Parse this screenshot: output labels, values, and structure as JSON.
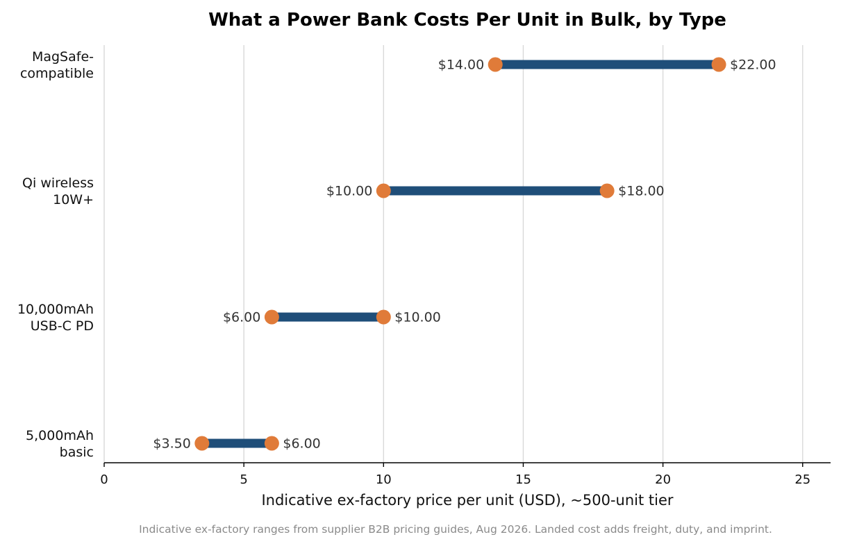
{
  "chart_data": {
    "type": "dumbbell",
    "title": "What a Power Bank Costs Per Unit in Bulk, by Type",
    "xlabel": "Indicative ex-factory price per unit (USD), ~500-unit tier",
    "xlim": [
      0,
      26
    ],
    "xticks": [
      0,
      5,
      10,
      15,
      20,
      25
    ],
    "grid": "vertical",
    "categories": [
      {
        "label": [
          "MagSafe-",
          "compatible"
        ],
        "low": 14.0,
        "high": 22.0,
        "low_label": "$14.00",
        "high_label": "$22.00"
      },
      {
        "label": [
          "Qi wireless",
          "10W+"
        ],
        "low": 10.0,
        "high": 18.0,
        "low_label": "$10.00",
        "high_label": "$18.00"
      },
      {
        "label": [
          "10,000mAh",
          "USB-C PD"
        ],
        "low": 6.0,
        "high": 10.0,
        "low_label": "$6.00",
        "high_label": "$10.00"
      },
      {
        "label": [
          "5,000mAh",
          "basic"
        ],
        "low": 3.5,
        "high": 6.0,
        "low_label": "$3.50",
        "high_label": "$6.00"
      }
    ],
    "footnote": "Indicative ex-factory ranges from supplier B2B pricing guides, Aug 2026. Landed cost adds freight, duty, and imprint.",
    "colors": {
      "bar": "#1f4e79",
      "dot": "#e07b39"
    }
  }
}
